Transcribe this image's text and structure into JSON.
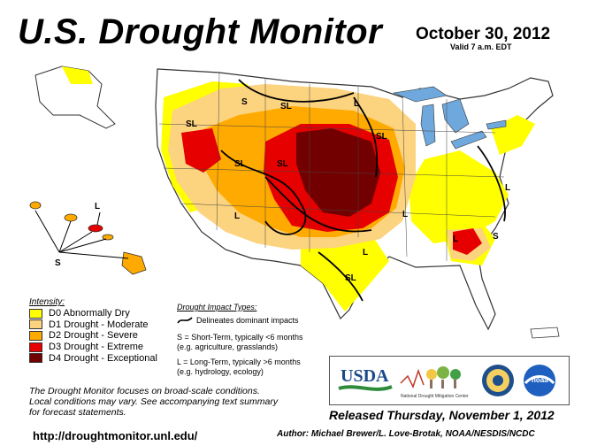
{
  "header": {
    "title": "U.S. Drought Monitor",
    "date": "October 30, 2012",
    "valid": "Valid 7 a.m. EDT"
  },
  "legend": {
    "title": "Intensity:",
    "items": [
      {
        "label": "D0 Abnormally Dry",
        "color": "#ffff00"
      },
      {
        "label": "D1 Drought - Moderate",
        "color": "#fcd37f"
      },
      {
        "label": "D2 Drought - Severe",
        "color": "#ffaa00"
      },
      {
        "label": "D3 Drought - Extreme",
        "color": "#e60000"
      },
      {
        "label": "D4 Drought - Exceptional",
        "color": "#730000"
      }
    ]
  },
  "impact": {
    "title": "Drought Impact Types:",
    "line_label": "Delineates dominant impacts",
    "short_term_1": "S = Short-Term, typically <6 months",
    "short_term_2": "(e.g. agriculture, grasslands)",
    "long_term_1": "L = Long-Term, typically >6 months",
    "long_term_2": "(e.g. hydrology, ecology)"
  },
  "map_labels": {
    "sl": "SL",
    "l": "L",
    "s": "S"
  },
  "footer": {
    "note_1": "The Drought Monitor focuses on broad-scale conditions.",
    "note_2": "Local conditions may vary. See accompanying text summary",
    "note_3": "for forecast statements.",
    "url": "http://droughtmonitor.unl.edu/",
    "released": "Released Thursday, November 1, 2012",
    "author": "Author: Michael Brewer/L. Love-Brotak, NOAA/NESDIS/NCDC"
  },
  "logos": {
    "usda": "USDA",
    "ndmc": "National Drought Mitigation Center",
    "noaa": "noaa"
  },
  "colors": {
    "water": "#6fa8dc",
    "land": "#ffffff"
  }
}
